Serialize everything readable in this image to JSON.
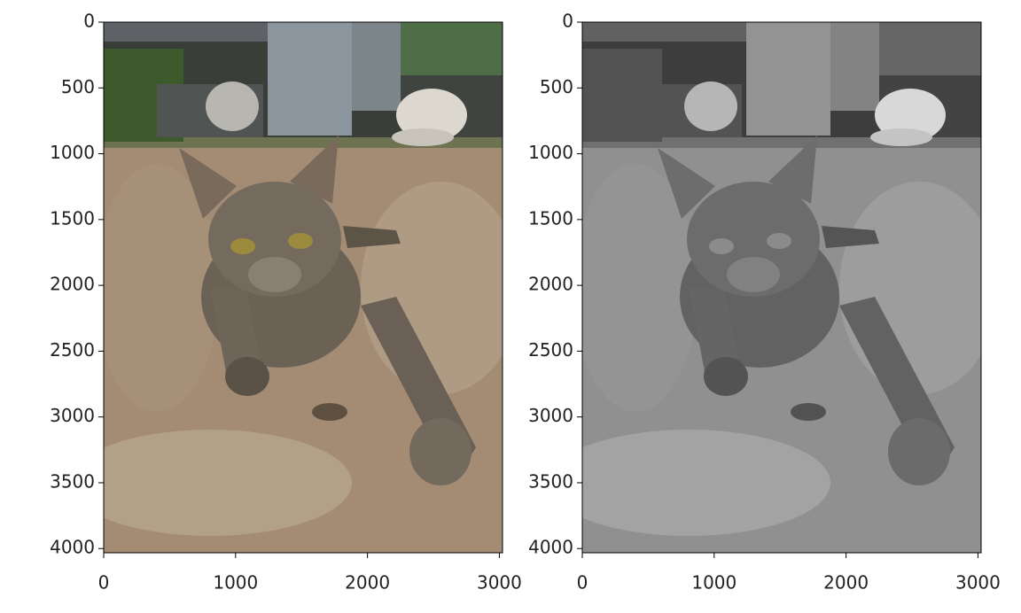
{
  "chart_data": [
    {
      "type": "image",
      "xlim": [
        0,
        3024
      ],
      "ylim": [
        4032,
        0
      ],
      "xticks": [
        0,
        1000,
        2000,
        3000
      ],
      "yticks": [
        0,
        500,
        1000,
        1500,
        2000,
        2500,
        3000,
        3500,
        4000
      ]
    },
    {
      "type": "image",
      "cmap": "gray",
      "xlim": [
        0,
        3024
      ],
      "ylim": [
        4032,
        0
      ],
      "xticks": [
        0,
        1000,
        2000,
        3000
      ],
      "yticks": [
        0,
        500,
        1000,
        1500,
        2000,
        2500,
        3000,
        3500,
        4000
      ]
    }
  ]
}
